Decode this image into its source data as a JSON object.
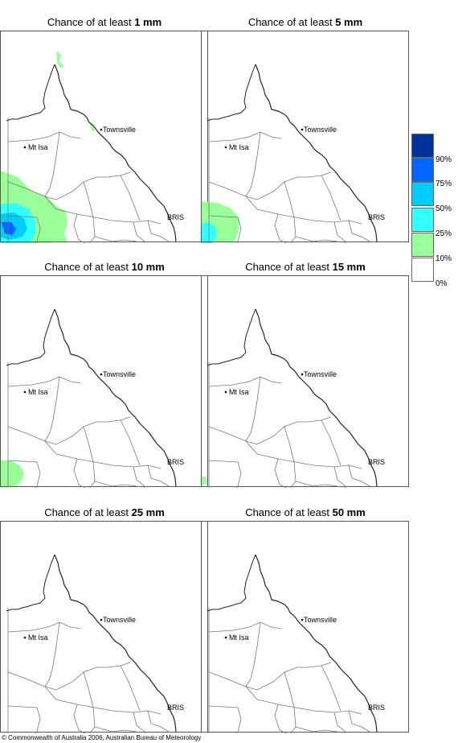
{
  "panels": [
    {
      "title_prefix": "Chance of at least ",
      "threshold": "1 mm"
    },
    {
      "title_prefix": "Chance of at least ",
      "threshold": "5 mm"
    },
    {
      "title_prefix": "Chance of at least ",
      "threshold": "10 mm"
    },
    {
      "title_prefix": "Chance of at least ",
      "threshold": "15 mm"
    },
    {
      "title_prefix": "Chance of at least ",
      "threshold": "25 mm"
    },
    {
      "title_prefix": "Chance of at least ",
      "threshold": "50 mm"
    }
  ],
  "places": {
    "townsville": "Townsville",
    "mt_isa": "Mt Isa",
    "brisbane": "BRIS"
  },
  "legend": {
    "labels": [
      "90%",
      "75%",
      "50%",
      "25%",
      "10%",
      "0%"
    ],
    "colors": [
      "#003399",
      "#0066ff",
      "#00ccff",
      "#33ffff",
      "#99ff99",
      "#ffffff"
    ]
  },
  "copyright": "© Commonwealth of Australia 2006, Australian Bureau of Meteorology"
}
